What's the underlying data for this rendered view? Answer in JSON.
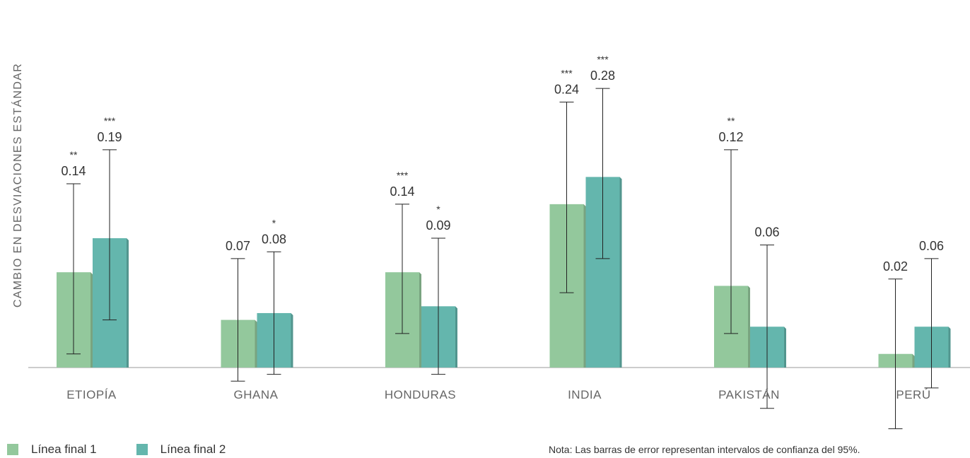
{
  "chart_data": {
    "type": "bar",
    "ylabel": "CAMBIO EN DESVIACIONES ESTÁNDAR",
    "categories": [
      "ETIOPÍA",
      "GHANA",
      "HONDURAS",
      "INDIA",
      "PAKISTÁN",
      "PERÚ"
    ],
    "series": [
      {
        "name": "Línea final 1",
        "color": "#93c89c",
        "values": [
          0.14,
          0.07,
          0.14,
          0.24,
          0.12,
          0.02
        ],
        "labels": [
          "0.14",
          "0.07",
          "0.14",
          "0.24",
          "0.12",
          "0.02"
        ],
        "significance": [
          "**",
          "",
          "***",
          "***",
          "**",
          ""
        ],
        "ci": [
          [
            0.02,
            0.27
          ],
          [
            -0.02,
            0.16
          ],
          [
            0.05,
            0.24
          ],
          [
            0.11,
            0.39
          ],
          [
            0.05,
            0.32
          ],
          [
            -0.09,
            0.13
          ]
        ]
      },
      {
        "name": "Línea final 2",
        "color": "#64b6ad",
        "values": [
          0.19,
          0.08,
          0.09,
          0.28,
          0.06,
          0.06
        ],
        "labels": [
          "0.19",
          "0.08",
          "0.09",
          "0.28",
          "0.06",
          "0.06"
        ],
        "significance": [
          "***",
          "*",
          "*",
          "***",
          "",
          ""
        ],
        "ci": [
          [
            0.07,
            0.32
          ],
          [
            -0.01,
            0.17
          ],
          [
            -0.01,
            0.19
          ],
          [
            0.16,
            0.41
          ],
          [
            -0.06,
            0.18
          ],
          [
            -0.03,
            0.16
          ]
        ]
      }
    ],
    "legend_position": "bottom-left",
    "note": "Nota: Las barras de error representan intervalos de confianza del 95%.",
    "grid": false
  }
}
